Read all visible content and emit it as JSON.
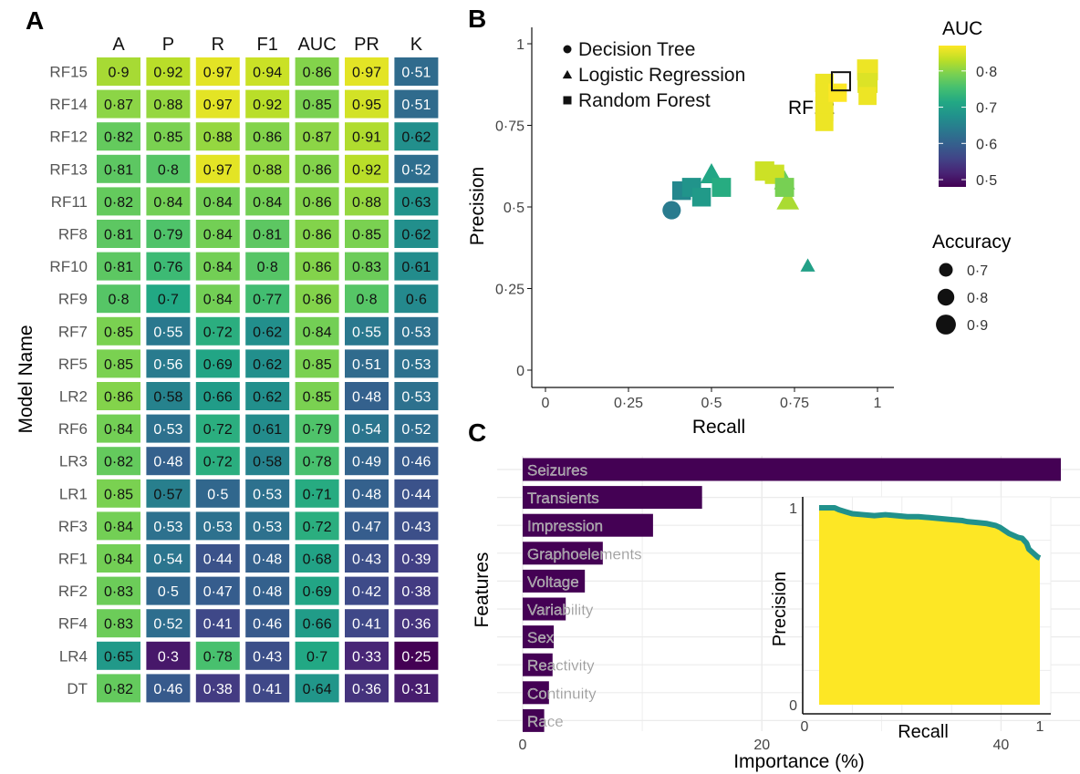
{
  "figure": {
    "panel_labels": [
      "A",
      "B",
      "C"
    ]
  },
  "chart_data": [
    {
      "panel": "A",
      "type": "heatmap",
      "columns": [
        "A",
        "P",
        "R",
        "F1",
        "AUC",
        "PR",
        "K"
      ],
      "rows": [
        "RF15",
        "RF14",
        "RF12",
        "RF13",
        "RF11",
        "RF8",
        "RF10",
        "RF9",
        "RF7",
        "RF5",
        "LR2",
        "RF6",
        "LR3",
        "LR1",
        "RF3",
        "RF1",
        "RF2",
        "RF4",
        "LR4",
        "DT"
      ],
      "values": [
        [
          0.9,
          0.92,
          0.97,
          0.94,
          0.86,
          0.97,
          0.51
        ],
        [
          0.87,
          0.88,
          0.97,
          0.92,
          0.85,
          0.95,
          0.51
        ],
        [
          0.82,
          0.85,
          0.88,
          0.86,
          0.87,
          0.91,
          0.62
        ],
        [
          0.81,
          0.8,
          0.97,
          0.88,
          0.86,
          0.92,
          0.52
        ],
        [
          0.82,
          0.84,
          0.84,
          0.84,
          0.86,
          0.88,
          0.63
        ],
        [
          0.81,
          0.79,
          0.84,
          0.81,
          0.86,
          0.85,
          0.62
        ],
        [
          0.81,
          0.76,
          0.84,
          0.8,
          0.86,
          0.83,
          0.61
        ],
        [
          0.8,
          0.7,
          0.84,
          0.77,
          0.86,
          0.8,
          0.6
        ],
        [
          0.85,
          0.55,
          0.72,
          0.62,
          0.84,
          0.55,
          0.53
        ],
        [
          0.85,
          0.56,
          0.69,
          0.62,
          0.85,
          0.51,
          0.53
        ],
        [
          0.86,
          0.58,
          0.66,
          0.62,
          0.85,
          0.48,
          0.53
        ],
        [
          0.84,
          0.53,
          0.72,
          0.61,
          0.79,
          0.54,
          0.52
        ],
        [
          0.82,
          0.48,
          0.72,
          0.58,
          0.78,
          0.49,
          0.46
        ],
        [
          0.85,
          0.57,
          0.5,
          0.53,
          0.71,
          0.48,
          0.44
        ],
        [
          0.84,
          0.53,
          0.53,
          0.53,
          0.72,
          0.47,
          0.43
        ],
        [
          0.84,
          0.54,
          0.44,
          0.48,
          0.68,
          0.43,
          0.39
        ],
        [
          0.83,
          0.5,
          0.47,
          0.48,
          0.69,
          0.42,
          0.38
        ],
        [
          0.83,
          0.52,
          0.41,
          0.46,
          0.66,
          0.41,
          0.36
        ],
        [
          0.65,
          0.3,
          0.78,
          0.43,
          0.7,
          0.33,
          0.25
        ],
        [
          0.82,
          0.46,
          0.38,
          0.41,
          0.64,
          0.36,
          0.31
        ]
      ],
      "ylabel": "Model Name",
      "colormap": "viridis",
      "color_range": [
        0.25,
        1.0
      ],
      "decimal_mark": "·"
    },
    {
      "panel": "B",
      "type": "scatter",
      "xlabel": "Recall",
      "ylabel": "Precision",
      "xlim": [
        0,
        1
      ],
      "ylim": [
        0,
        1
      ],
      "xticks": [
        0,
        0.25,
        0.5,
        0.75,
        1
      ],
      "yticks": [
        0,
        0.25,
        0.5,
        0.75,
        1
      ],
      "xtick_labels": [
        "0",
        "0·25",
        "0·5",
        "0·75",
        "1"
      ],
      "ytick_labels": [
        "0",
        "0·25",
        "0·5",
        "0·75",
        "1"
      ],
      "shape_legend": [
        {
          "label": "Decision Tree",
          "shape": "circle"
        },
        {
          "label": "Logistic Regression",
          "shape": "triangle"
        },
        {
          "label": "Random Forest",
          "shape": "square"
        }
      ],
      "color_legend": {
        "title": "AUC",
        "ticks": [
          0.5,
          0.6,
          0.7,
          0.8
        ],
        "tick_labels": [
          "0·5",
          "0·6",
          "0·7",
          "0·8"
        ],
        "range": [
          0.48,
          0.87
        ]
      },
      "size_legend": {
        "title": "Accuracy",
        "values": [
          0.7,
          0.8,
          0.9
        ],
        "labels": [
          "0·7",
          "0·8",
          "0·9"
        ]
      },
      "annotation": {
        "label": "RF12",
        "x": 0.89,
        "y": 0.885
      },
      "points": [
        {
          "shape": "circle",
          "recall": 0.38,
          "precision": 0.49,
          "auc": 0.64,
          "acc": 0.82
        },
        {
          "shape": "triangle",
          "recall": 0.5,
          "precision": 0.6,
          "auc": 0.71,
          "acc": 0.85
        },
        {
          "shape": "triangle",
          "recall": 0.72,
          "precision": 0.58,
          "auc": 0.78,
          "acc": 0.82
        },
        {
          "shape": "triangle",
          "recall": 0.73,
          "precision": 0.52,
          "auc": 0.82,
          "acc": 0.86
        },
        {
          "shape": "triangle",
          "recall": 0.79,
          "precision": 0.32,
          "auc": 0.7,
          "acc": 0.65
        },
        {
          "shape": "square",
          "recall": 0.41,
          "precision": 0.55,
          "auc": 0.66,
          "acc": 0.83
        },
        {
          "shape": "square",
          "recall": 0.44,
          "precision": 0.56,
          "auc": 0.68,
          "acc": 0.84
        },
        {
          "shape": "square",
          "recall": 0.47,
          "precision": 0.53,
          "auc": 0.69,
          "acc": 0.83
        },
        {
          "shape": "square",
          "recall": 0.53,
          "precision": 0.56,
          "auc": 0.72,
          "acc": 0.84
        },
        {
          "shape": "square",
          "recall": 0.66,
          "precision": 0.61,
          "auc": 0.84,
          "acc": 0.85
        },
        {
          "shape": "square",
          "recall": 0.69,
          "precision": 0.6,
          "auc": 0.84,
          "acc": 0.85
        },
        {
          "shape": "square",
          "recall": 0.72,
          "precision": 0.56,
          "auc": 0.79,
          "acc": 0.84
        },
        {
          "shape": "square",
          "recall": 0.84,
          "precision": 0.88,
          "auc": 0.86,
          "acc": 0.82
        },
        {
          "shape": "square",
          "recall": 0.84,
          "precision": 0.85,
          "auc": 0.86,
          "acc": 0.81
        },
        {
          "shape": "square",
          "recall": 0.84,
          "precision": 0.81,
          "auc": 0.86,
          "acc": 0.81
        },
        {
          "shape": "square",
          "recall": 0.84,
          "precision": 0.79,
          "auc": 0.86,
          "acc": 0.81
        },
        {
          "shape": "square",
          "recall": 0.84,
          "precision": 0.76,
          "auc": 0.86,
          "acc": 0.81
        },
        {
          "shape": "square",
          "recall": 0.88,
          "precision": 0.85,
          "auc": 0.87,
          "acc": 0.82
        },
        {
          "shape": "square",
          "recall": 0.97,
          "precision": 0.92,
          "auc": 0.86,
          "acc": 0.9
        },
        {
          "shape": "square",
          "recall": 0.97,
          "precision": 0.88,
          "auc": 0.85,
          "acc": 0.87
        },
        {
          "shape": "square",
          "recall": 0.97,
          "precision": 0.84,
          "auc": 0.86,
          "acc": 0.81
        }
      ]
    },
    {
      "panel": "C",
      "type": "bar",
      "orientation": "horizontal",
      "categories": [
        "Seizures",
        "Transients",
        "Impression",
        "Graphoelements",
        "Voltage",
        "Variability",
        "Sex",
        "Reactivity",
        "Continuity",
        "Race"
      ],
      "values": [
        45.0,
        15.0,
        10.9,
        6.7,
        5.2,
        3.6,
        2.6,
        2.5,
        2.2,
        1.8
      ],
      "xlabel": "Importance (%)",
      "ylabel": "Features",
      "xlim": [
        0,
        45
      ],
      "xticks": [
        0,
        20,
        40
      ],
      "bar_color": "#440154",
      "inset": {
        "type": "area",
        "xlabel": "Recall",
        "ylabel": "Precision",
        "xlim": [
          0,
          1
        ],
        "ylim": [
          0,
          1
        ],
        "xtick_labels": [
          "0",
          "1"
        ],
        "ytick_labels": [
          "0",
          "1"
        ],
        "fill_color": "#FDE725",
        "line_color": "#21918C",
        "x": [
          0.0,
          0.07,
          0.09,
          0.12,
          0.15,
          0.2,
          0.25,
          0.3,
          0.35,
          0.4,
          0.45,
          0.5,
          0.55,
          0.6,
          0.65,
          0.67,
          0.72,
          0.76,
          0.8,
          0.82,
          0.84,
          0.86,
          0.88,
          0.9,
          0.92,
          0.94,
          0.95,
          0.97,
          0.99,
          1.0
        ],
        "y": [
          1.0,
          1.0,
          0.99,
          0.98,
          0.97,
          0.965,
          0.96,
          0.965,
          0.96,
          0.955,
          0.955,
          0.95,
          0.945,
          0.94,
          0.935,
          0.93,
          0.925,
          0.92,
          0.91,
          0.9,
          0.885,
          0.87,
          0.86,
          0.85,
          0.845,
          0.82,
          0.79,
          0.77,
          0.75,
          0.745
        ]
      }
    }
  ]
}
